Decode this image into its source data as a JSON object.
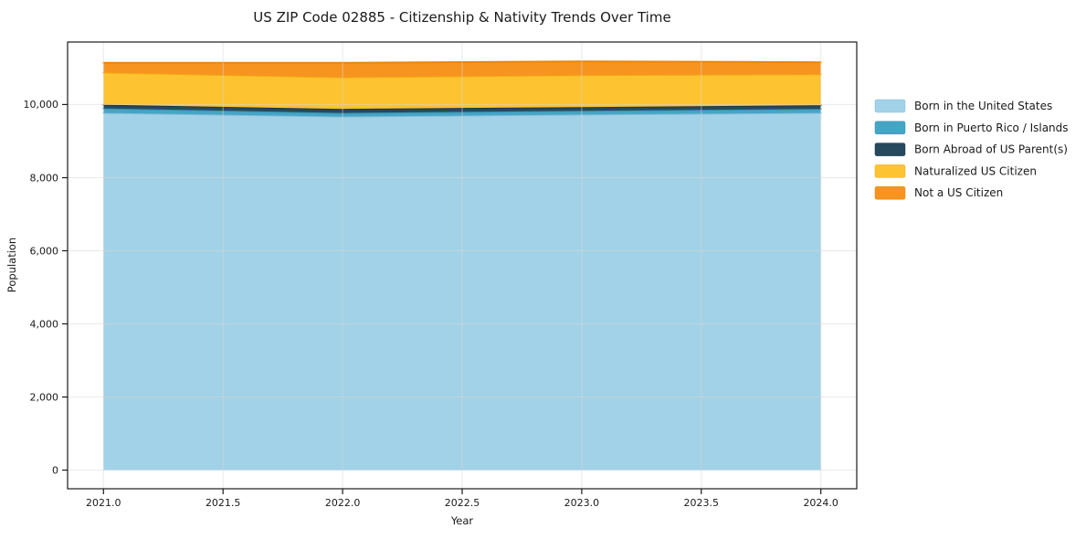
{
  "figure": {
    "title": "US ZIP Code 02885 - Citizenship & Nativity Trends Over Time",
    "xlabel": "Year",
    "ylabel": "Population"
  },
  "chart_data": {
    "type": "area",
    "stacked": true,
    "title": "US ZIP Code 02885 - Citizenship & Nativity Trends Over Time",
    "xlabel": "Year",
    "ylabel": "Population",
    "grid": true,
    "legend_position": "right-outside",
    "x": [
      2021,
      2022,
      2023,
      2024
    ],
    "series": [
      {
        "name": "Born in the United States",
        "values": [
          9770,
          9670,
          9725,
          9770
        ],
        "fill": "#a2d2e8",
        "edge": "#86bcd8"
      },
      {
        "name": "Born in Puerto Rico / Islands",
        "values": [
          125,
          100,
          105,
          110
        ],
        "fill": "#46a5c5",
        "edge": "#3391b2"
      },
      {
        "name": "Born Abroad of US Parent(s)",
        "values": [
          100,
          110,
          100,
          100
        ],
        "fill": "#27495d",
        "edge": "#1a3648"
      },
      {
        "name": "Naturalized US Citizen",
        "values": [
          880,
          865,
          875,
          850
        ],
        "fill": "#fdc330",
        "edge": "#f0ab14"
      },
      {
        "name": "Not a US Citizen",
        "values": [
          265,
          395,
          375,
          325
        ],
        "fill": "#f79420",
        "edge": "#e8860d"
      }
    ],
    "stack_totals": [
      11140,
      11140,
      11180,
      11155
    ],
    "xlim": [
      2020.85,
      2024.15
    ],
    "ylim": [
      -510,
      11710
    ],
    "x_ticks": {
      "values": [
        2021,
        2021.5,
        2022,
        2022.5,
        2023,
        2023.5,
        2024
      ],
      "labels": [
        "2021.0",
        "2021.5",
        "2022.0",
        "2022.5",
        "2023.0",
        "2023.5",
        "2024.0"
      ]
    },
    "y_ticks": {
      "values": [
        0,
        2000,
        4000,
        6000,
        8000,
        10000
      ],
      "labels": [
        "0",
        "2,000",
        "4,000",
        "6,000",
        "8,000",
        "10,000"
      ]
    },
    "colors": {
      "spine": "#1a1a1a",
      "gridline": "#d7d7d7",
      "text": "#1a1a1a",
      "background": "#ffffff"
    }
  }
}
